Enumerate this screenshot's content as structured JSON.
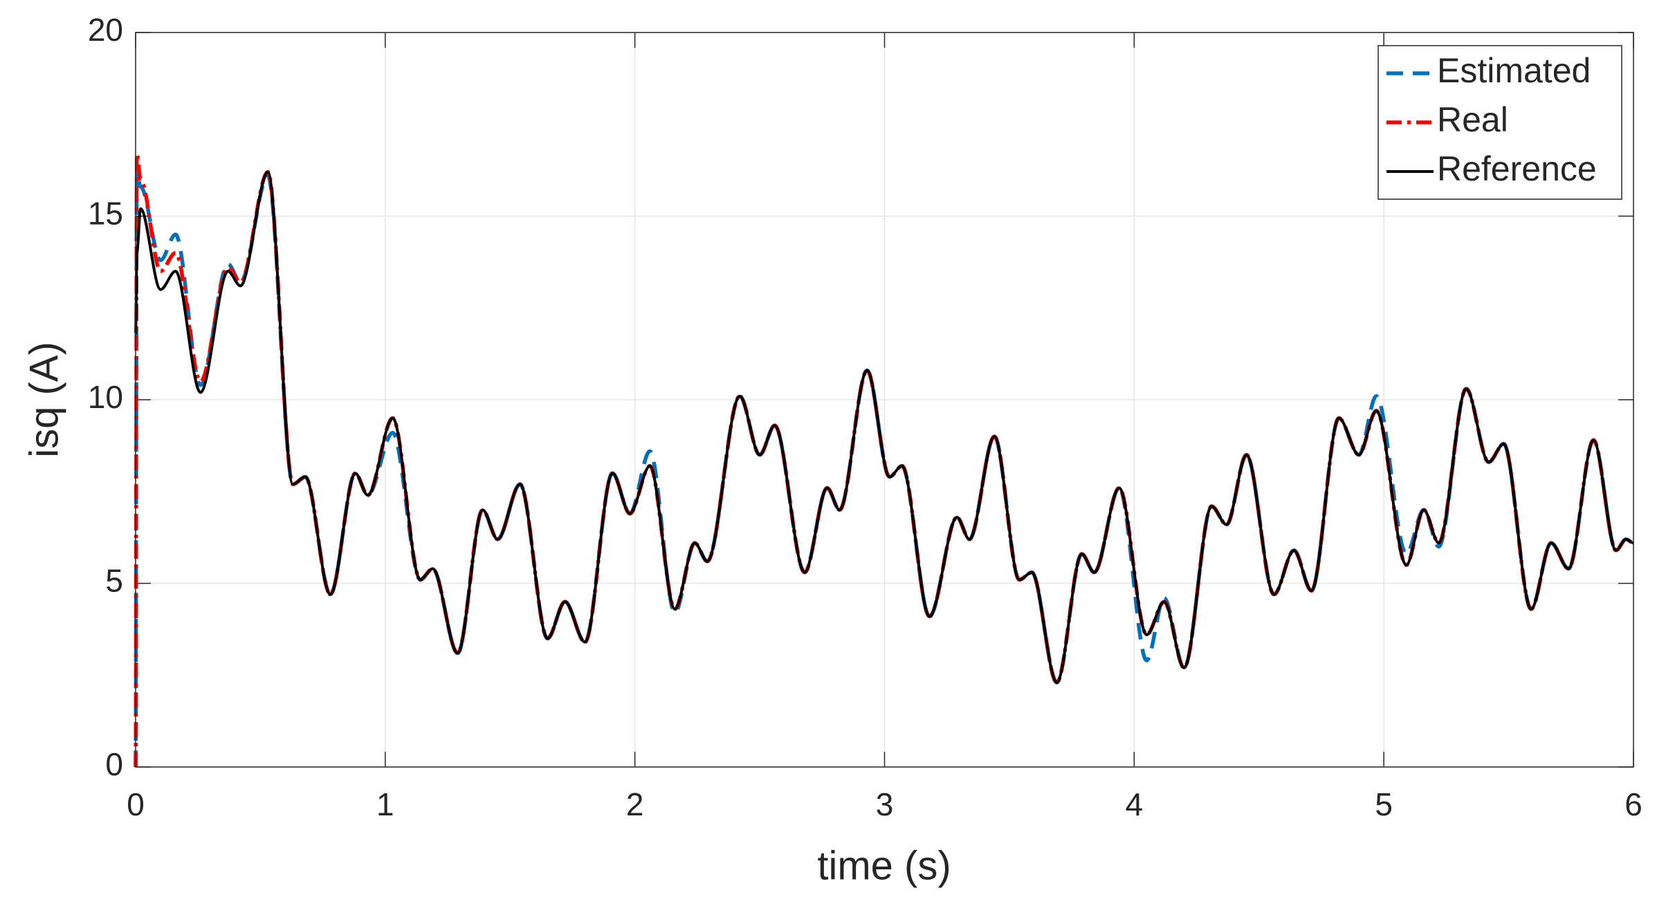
{
  "chart_data": {
    "type": "line",
    "xlabel": "time (s)",
    "ylabel": "isq (A)",
    "xlim": [
      0,
      6
    ],
    "xticks": [
      0,
      1,
      2,
      3,
      4,
      5,
      6
    ],
    "ylim": [
      0,
      20
    ],
    "yticks": [
      0,
      5,
      10,
      15,
      20
    ],
    "grid": true,
    "legend": "upper right",
    "x": [
      0,
      0.005,
      0.02,
      0.1,
      0.16,
      0.26,
      0.37,
      0.42,
      0.53,
      0.63,
      0.68,
      0.78,
      0.88,
      0.93,
      1.03,
      1.14,
      1.19,
      1.29,
      1.39,
      1.45,
      1.54,
      1.65,
      1.72,
      1.8,
      1.91,
      1.98,
      2.06,
      2.16,
      2.24,
      2.29,
      2.42,
      2.5,
      2.56,
      2.68,
      2.77,
      2.82,
      2.93,
      3.02,
      3.07,
      3.18,
      3.29,
      3.34,
      3.44,
      3.54,
      3.59,
      3.69,
      3.79,
      3.84,
      3.94,
      4.05,
      4.12,
      4.2,
      4.31,
      4.37,
      4.45,
      4.56,
      4.64,
      4.71,
      4.82,
      4.9,
      4.97,
      5.09,
      5.16,
      5.22,
      5.33,
      5.42,
      5.48,
      5.59,
      5.67,
      5.74,
      5.84,
      5.93,
      5.97,
      6.0
    ],
    "series": [
      {
        "name": "Estimated",
        "color": "#0072bd",
        "style": "dashed",
        "values": [
          0,
          16.2,
          15.8,
          13.8,
          14.5,
          10.4,
          13.7,
          13.2,
          16.1,
          7.7,
          7.9,
          4.7,
          8.0,
          7.4,
          9.1,
          5.1,
          5.4,
          3.1,
          7.0,
          6.2,
          7.7,
          3.5,
          4.5,
          3.4,
          8.0,
          6.9,
          8.6,
          4.2,
          6.1,
          5.6,
          10.1,
          8.5,
          9.3,
          5.3,
          7.6,
          7.0,
          10.8,
          7.9,
          8.2,
          4.1,
          6.8,
          6.2,
          9.0,
          5.1,
          5.3,
          2.3,
          5.8,
          5.3,
          7.6,
          2.9,
          4.6,
          2.7,
          7.1,
          6.6,
          8.5,
          4.7,
          5.9,
          4.8,
          9.5,
          8.5,
          10.1,
          5.8,
          7.0,
          6.0,
          10.3,
          8.3,
          8.8,
          4.3,
          6.1,
          5.4,
          8.9,
          5.9,
          6.2,
          6.1
        ]
      },
      {
        "name": "Real",
        "color": "#ff0000",
        "style": "dashdot",
        "values": [
          0,
          16.7,
          16.0,
          13.5,
          14.0,
          10.5,
          13.6,
          13.2,
          16.2,
          7.7,
          7.9,
          4.7,
          8.0,
          7.4,
          9.5,
          5.1,
          5.4,
          3.1,
          7.0,
          6.2,
          7.7,
          3.5,
          4.5,
          3.4,
          8.0,
          6.9,
          8.2,
          4.3,
          6.1,
          5.6,
          10.1,
          8.5,
          9.3,
          5.3,
          7.6,
          7.0,
          10.8,
          7.9,
          8.2,
          4.1,
          6.8,
          6.2,
          9.0,
          5.1,
          5.3,
          2.3,
          5.8,
          5.3,
          7.6,
          3.6,
          4.5,
          2.7,
          7.1,
          6.6,
          8.5,
          4.7,
          5.9,
          4.8,
          9.5,
          8.5,
          9.7,
          5.5,
          7.0,
          6.1,
          10.3,
          8.3,
          8.8,
          4.3,
          6.1,
          5.4,
          8.9,
          5.9,
          6.2,
          6.1
        ]
      },
      {
        "name": "Reference",
        "color": "#000000",
        "style": "solid",
        "values": [
          11.8,
          14.0,
          15.2,
          13.0,
          13.5,
          10.2,
          13.5,
          13.1,
          16.2,
          7.7,
          7.9,
          4.7,
          8.0,
          7.4,
          9.5,
          5.1,
          5.4,
          3.1,
          7.0,
          6.2,
          7.7,
          3.5,
          4.5,
          3.4,
          8.0,
          6.9,
          8.2,
          4.3,
          6.1,
          5.6,
          10.1,
          8.5,
          9.3,
          5.3,
          7.6,
          7.0,
          10.8,
          7.9,
          8.2,
          4.1,
          6.8,
          6.2,
          9.0,
          5.1,
          5.3,
          2.3,
          5.8,
          5.3,
          7.6,
          3.6,
          4.5,
          2.7,
          7.1,
          6.6,
          8.5,
          4.7,
          5.9,
          4.8,
          9.5,
          8.5,
          9.7,
          5.5,
          7.0,
          6.1,
          10.3,
          8.3,
          8.8,
          4.3,
          6.1,
          5.4,
          8.9,
          5.9,
          6.2,
          6.1
        ]
      }
    ]
  }
}
